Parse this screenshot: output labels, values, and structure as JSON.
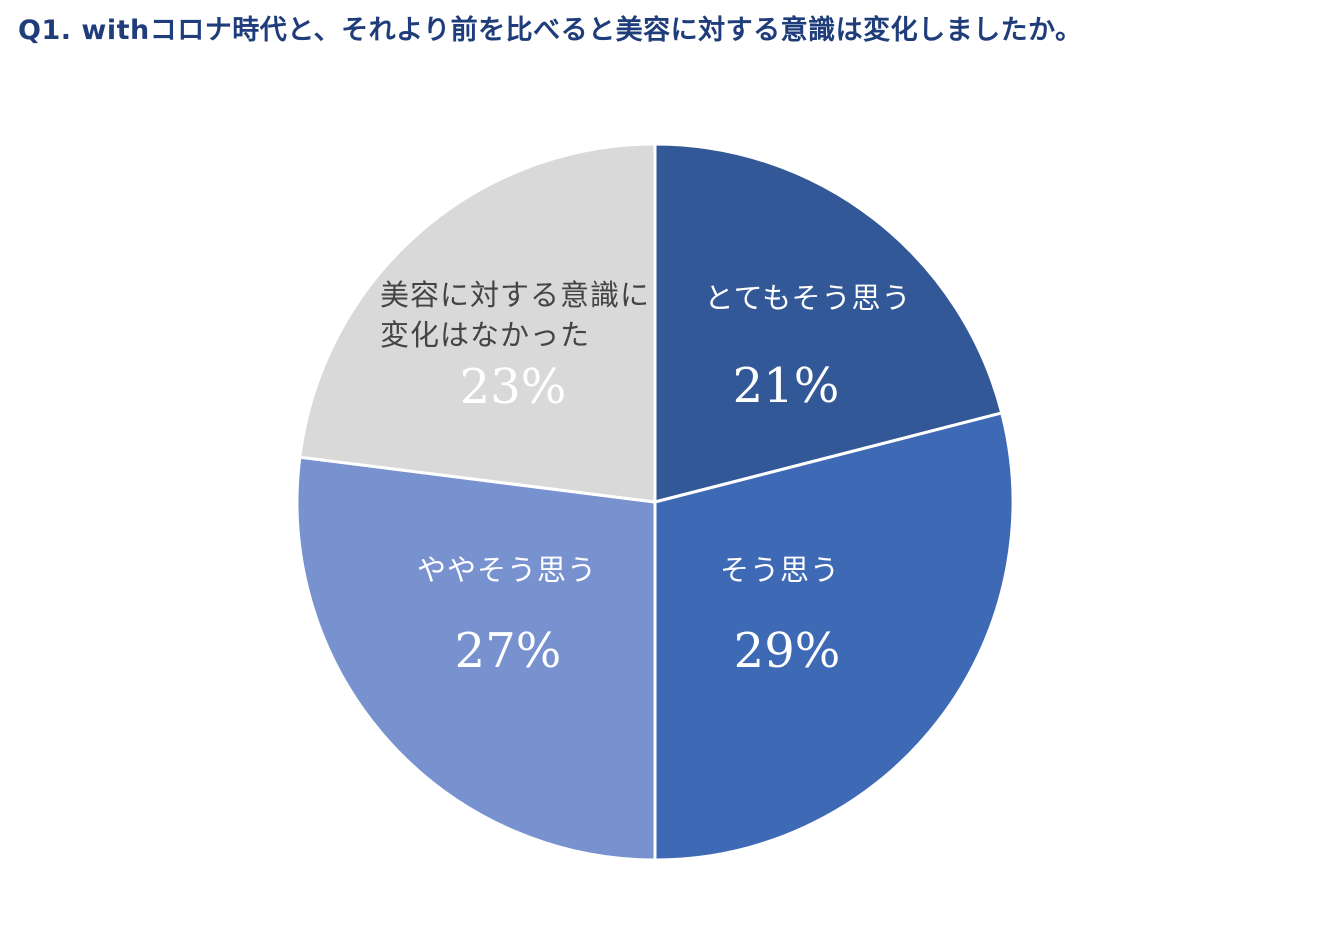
{
  "title": "Q1. withコロナ時代と、それより前を比べると美容に対する意識は変化しましたか。",
  "chart_data": {
    "type": "pie",
    "title": "Q1. withコロナ時代と、それより前を比べると美容に対する意識は変化しましたか。",
    "start": "12 o'clock, clockwise",
    "slices": [
      {
        "label": "とてもそう思う",
        "lines": [
          "とてもそう思う"
        ],
        "value": 21,
        "pct_label": "21%",
        "color": "#335897",
        "text_color": "#ffffff",
        "pct_color": "#ffffff"
      },
      {
        "label": "そう思う",
        "lines": [
          "そう思う"
        ],
        "value": 29,
        "pct_label": "29%",
        "color": "#3e69b5",
        "text_color": "#ffffff",
        "pct_color": "#ffffff"
      },
      {
        "label": "ややそう思う",
        "lines": [
          "ややそう思う"
        ],
        "value": 27,
        "pct_label": "27%",
        "color": "#7891cf",
        "text_color": "#ffffff",
        "pct_color": "#ffffff"
      },
      {
        "label": "美容に対する意識に変化はなかった",
        "lines": [
          "美容に対する意識に",
          "変化はなかった"
        ],
        "value": 23,
        "pct_label": "23%",
        "color": "#d9d9d9",
        "text_color": "#444444",
        "pct_color": "#ffffff"
      }
    ]
  }
}
